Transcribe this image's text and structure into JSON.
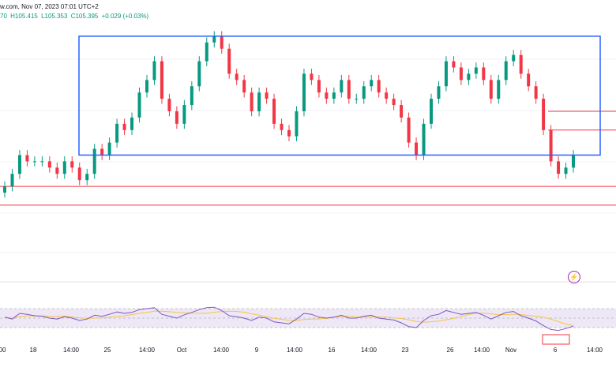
{
  "header": {
    "source_line": "w.com, Nov 07, 2023 07:01 UTC+2",
    "ohlc_prefix": "70",
    "high": "H105.415",
    "low": "L105.353",
    "close": "C105.395",
    "change": "+0.029 (+0.03%)"
  },
  "colors": {
    "up": "#089981",
    "down": "#f23645",
    "range_box": "#2962ff",
    "levels": "#f23645",
    "rsi": "#7e57c2",
    "rsi_ma": "#f7c548",
    "rsi_band": "#ede7f6"
  },
  "icons": {
    "alert": "lightning-icon"
  },
  "alert_glyph": "⚡",
  "chart_data": {
    "type": "candlestick",
    "title": "",
    "xlabel": "",
    "ylabel": "",
    "x_ticks": [
      "00",
      "18",
      "14:00",
      "25",
      "14:00",
      "Oct",
      "14:00",
      "9",
      "14:00",
      "16",
      "14:00",
      "23",
      "26",
      "14:00",
      "Nov",
      "6",
      "14:00"
    ],
    "price_range_low": 103.85,
    "price_range_high": 105.9,
    "range_box": {
      "top": 105.8,
      "bottom": 104.85
    },
    "levels": [
      105.2,
      105.05,
      104.6,
      104.45
    ],
    "closes": [
      104.6,
      104.7,
      104.85,
      104.8,
      104.8,
      104.8,
      104.75,
      104.7,
      104.8,
      104.75,
      104.65,
      104.7,
      104.9,
      104.85,
      104.95,
      105.1,
      105.05,
      105.15,
      105.35,
      105.45,
      105.6,
      105.3,
      105.2,
      105.1,
      105.25,
      105.4,
      105.6,
      105.75,
      105.8,
      105.7,
      105.5,
      105.45,
      105.35,
      105.2,
      105.35,
      105.3,
      105.1,
      105.05,
      105.0,
      105.2,
      105.5,
      105.45,
      105.35,
      105.3,
      105.35,
      105.45,
      105.3,
      105.3,
      105.4,
      105.45,
      105.35,
      105.3,
      105.25,
      105.15,
      104.95,
      104.85,
      105.1,
      105.3,
      105.4,
      105.6,
      105.55,
      105.45,
      105.5,
      105.55,
      105.45,
      105.3,
      105.45,
      105.6,
      105.65,
      105.5,
      105.4,
      105.3,
      105.05,
      104.8,
      104.7,
      104.75,
      104.85
    ],
    "rsi": {
      "upper": 70,
      "lower": 30,
      "values": [
        52,
        48,
        60,
        58,
        55,
        54,
        50,
        48,
        53,
        50,
        45,
        48,
        56,
        54,
        58,
        63,
        60,
        62,
        68,
        70,
        72,
        58,
        54,
        50,
        57,
        62,
        68,
        72,
        73,
        66,
        55,
        53,
        50,
        45,
        52,
        50,
        42,
        40,
        38,
        48,
        60,
        58,
        52,
        50,
        52,
        56,
        50,
        50,
        54,
        56,
        50,
        48,
        46,
        40,
        32,
        30,
        45,
        55,
        58,
        66,
        62,
        58,
        60,
        62,
        56,
        48,
        55,
        62,
        64,
        55,
        50,
        44,
        34,
        26,
        24,
        28,
        33
      ]
    }
  }
}
